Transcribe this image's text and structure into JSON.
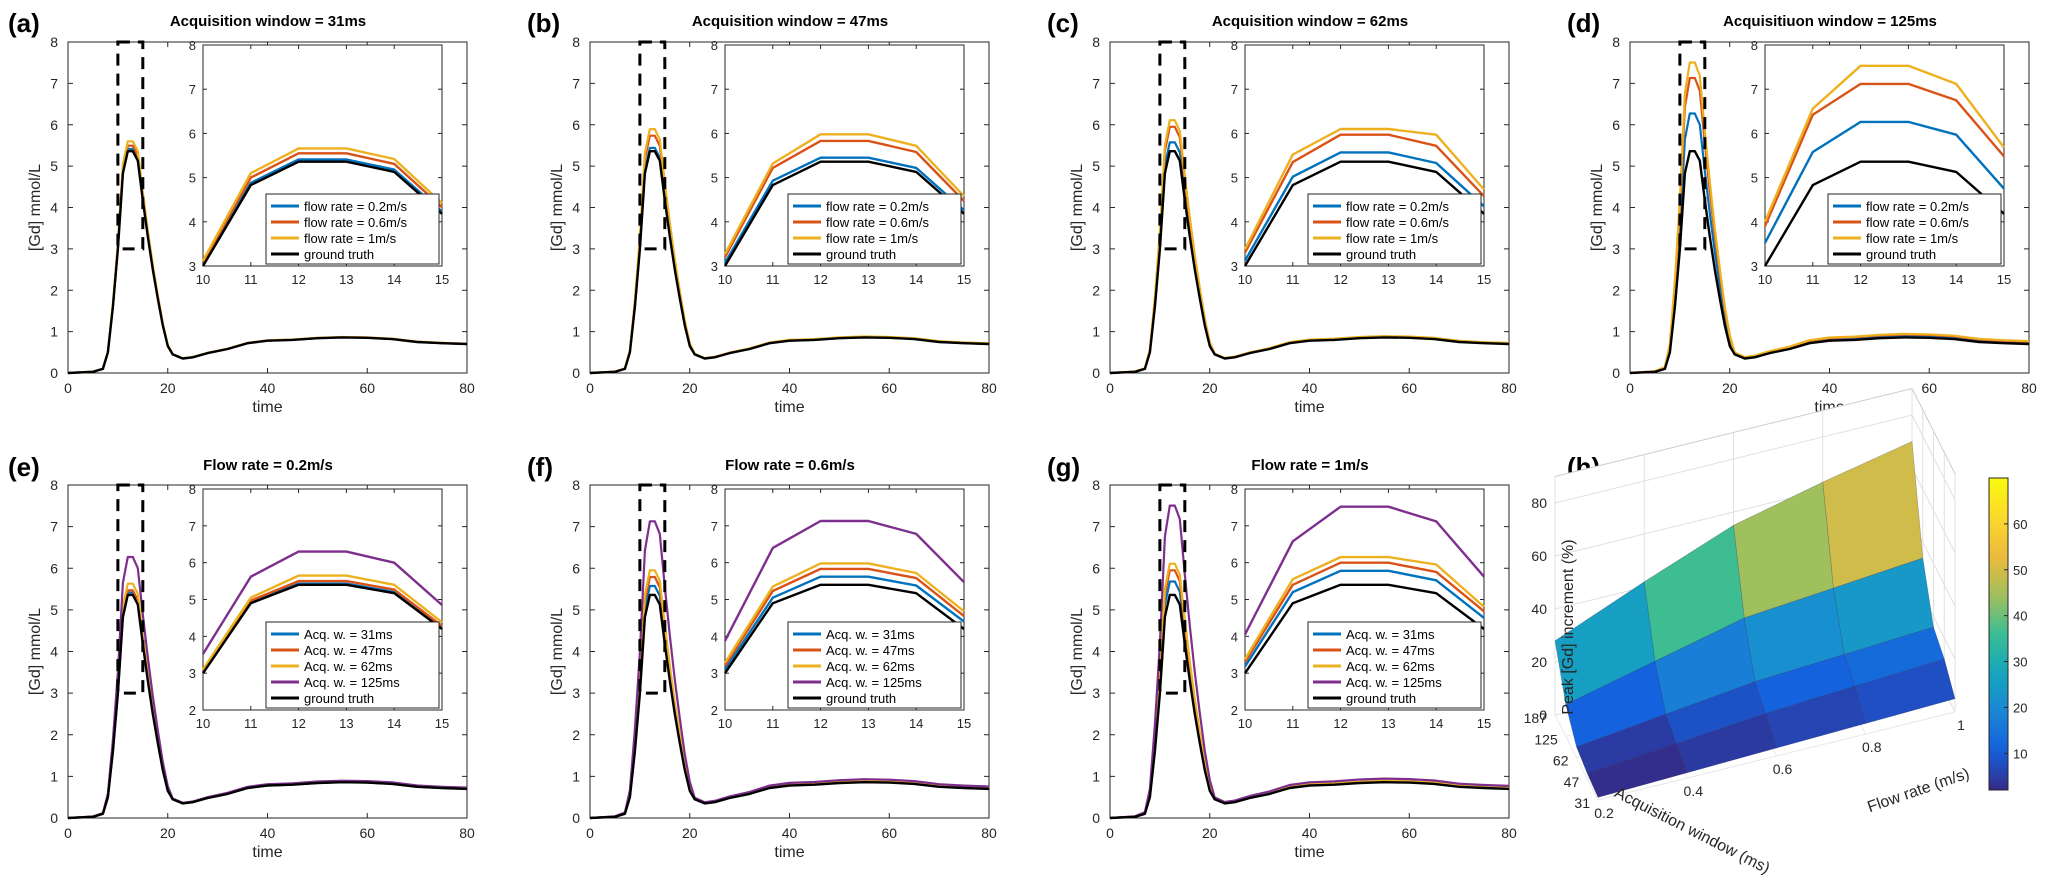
{
  "colors": {
    "blue": "#0072BD",
    "red": "#D95319",
    "yellow": "#EDB120",
    "purple": "#7E2F8E",
    "black": "#000000"
  },
  "chart_data": [
    {
      "panel": "(a)",
      "type": "line",
      "title": "Acquisition window = 31ms",
      "xlabel": "time",
      "ylabel": "[Gd] mmol/L",
      "xlim": [
        0,
        80
      ],
      "ylim": [
        0,
        8
      ],
      "xticks": [
        "0",
        "20",
        "40",
        "60",
        "80"
      ],
      "yticks": [
        "0",
        "1",
        "2",
        "3",
        "4",
        "5",
        "6",
        "7",
        "8"
      ],
      "inset": {
        "xlim": [
          10,
          15
        ],
        "ylim": [
          3,
          8
        ],
        "xticks": [
          "10",
          "11",
          "12",
          "13",
          "14",
          "15"
        ],
        "yticks": [
          "3",
          "4",
          "5",
          "6",
          "7",
          "8"
        ]
      },
      "series": [
        {
          "name": "flow rate = 0.2m/s",
          "color": "blue",
          "scale": 1.01,
          "x": [
            10,
            11,
            12,
            13,
            14,
            15
          ],
          "y": [
            3.05,
            4.88,
            5.41,
            5.41,
            5.18,
            4.23
          ]
        },
        {
          "name": "flow rate = 0.6m/s",
          "color": "red",
          "scale": 1.025,
          "x": [
            10,
            11,
            12,
            13,
            14,
            15
          ],
          "y": [
            3.08,
            5.0,
            5.55,
            5.55,
            5.31,
            4.33
          ]
        },
        {
          "name": "flow rate = 1m/s",
          "color": "yellow",
          "scale": 1.045,
          "x": [
            10,
            11,
            12,
            13,
            14,
            15
          ],
          "y": [
            3.12,
            5.1,
            5.66,
            5.66,
            5.42,
            4.42
          ]
        },
        {
          "name": "ground truth",
          "color": "black",
          "scale": 1.0,
          "x": [
            10,
            11,
            12,
            13,
            14,
            15
          ],
          "y": [
            3.0,
            4.83,
            5.36,
            5.36,
            5.13,
            4.18
          ]
        }
      ]
    },
    {
      "panel": "(b)",
      "type": "line",
      "title": "Acquisition window = 47ms",
      "xlabel": "time",
      "ylabel": "[Gd] mmol/L",
      "xlim": [
        0,
        80
      ],
      "ylim": [
        0,
        8
      ],
      "xticks": [
        "0",
        "20",
        "40",
        "60",
        "80"
      ],
      "yticks": [
        "0",
        "1",
        "2",
        "3",
        "4",
        "5",
        "6",
        "7",
        "8"
      ],
      "inset": {
        "xlim": [
          10,
          15
        ],
        "ylim": [
          3,
          8
        ],
        "xticks": [
          "10",
          "11",
          "12",
          "13",
          "14",
          "15"
        ],
        "yticks": [
          "3",
          "4",
          "5",
          "6",
          "7",
          "8"
        ]
      },
      "series": [
        {
          "name": "flow rate = 0.2m/s",
          "color": "blue",
          "scale": 1.015,
          "x": [
            10,
            11,
            12,
            13,
            14,
            15
          ],
          "y": [
            3.07,
            4.93,
            5.45,
            5.45,
            5.22,
            4.26
          ]
        },
        {
          "name": "flow rate = 0.6m/s",
          "color": "red",
          "scale": 1.07,
          "x": [
            10,
            11,
            12,
            13,
            14,
            15
          ],
          "y": [
            3.2,
            5.22,
            5.83,
            5.83,
            5.58,
            4.47
          ]
        },
        {
          "name": "flow rate = 1m/s",
          "color": "yellow",
          "scale": 1.1,
          "x": [
            10,
            11,
            12,
            13,
            14,
            15
          ],
          "y": [
            3.27,
            5.32,
            5.98,
            5.98,
            5.72,
            4.58
          ]
        },
        {
          "name": "ground truth",
          "color": "black",
          "scale": 1.0,
          "x": [
            10,
            11,
            12,
            13,
            14,
            15
          ],
          "y": [
            3.0,
            4.83,
            5.36,
            5.36,
            5.13,
            4.18
          ]
        }
      ]
    },
    {
      "panel": "(c)",
      "type": "line",
      "title": "Acquisition window = 62ms",
      "xlabel": "time",
      "ylabel": "[Gd] mmol/L",
      "xlim": [
        0,
        80
      ],
      "ylim": [
        0,
        8
      ],
      "xticks": [
        "0",
        "20",
        "40",
        "60",
        "80"
      ],
      "yticks": [
        "0",
        "1",
        "2",
        "3",
        "4",
        "5",
        "6",
        "7",
        "8"
      ],
      "inset": {
        "xlim": [
          10,
          15
        ],
        "ylim": [
          3,
          8
        ],
        "xticks": [
          "10",
          "11",
          "12",
          "13",
          "14",
          "15"
        ],
        "yticks": [
          "3",
          "4",
          "5",
          "6",
          "7",
          "8"
        ]
      },
      "series": [
        {
          "name": "flow rate = 0.2m/s",
          "color": "blue",
          "scale": 1.04,
          "x": [
            10,
            11,
            12,
            13,
            14,
            15
          ],
          "y": [
            3.12,
            5.02,
            5.57,
            5.57,
            5.33,
            4.35
          ]
        },
        {
          "name": "flow rate = 0.6m/s",
          "color": "red",
          "scale": 1.11,
          "x": [
            10,
            11,
            12,
            13,
            14,
            15
          ],
          "y": [
            3.3,
            5.35,
            5.97,
            5.97,
            5.72,
            4.58
          ]
        },
        {
          "name": "flow rate = 1m/s",
          "color": "yellow",
          "scale": 1.14,
          "x": [
            10,
            11,
            12,
            13,
            14,
            15
          ],
          "y": [
            3.38,
            5.52,
            6.1,
            6.1,
            5.97,
            4.73
          ]
        },
        {
          "name": "ground truth",
          "color": "black",
          "scale": 1.0,
          "x": [
            10,
            11,
            12,
            13,
            14,
            15
          ],
          "y": [
            3.0,
            4.83,
            5.36,
            5.36,
            5.13,
            4.18
          ]
        }
      ]
    },
    {
      "panel": "(d)",
      "type": "line",
      "title": "Acquisitiuon window = 125ms",
      "xlabel": "time",
      "ylabel": "[Gd] mmol/L",
      "xlim": [
        0,
        80
      ],
      "ylim": [
        0,
        8
      ],
      "xticks": [
        "0",
        "20",
        "40",
        "60",
        "80"
      ],
      "yticks": [
        "0",
        "1",
        "2",
        "3",
        "4",
        "5",
        "6",
        "7",
        "8"
      ],
      "inset": {
        "xlim": [
          10,
          15
        ],
        "ylim": [
          3,
          8
        ],
        "xticks": [
          "10",
          "11",
          "12",
          "13",
          "14",
          "15"
        ],
        "yticks": [
          "3",
          "4",
          "5",
          "6",
          "7",
          "8"
        ]
      },
      "series": [
        {
          "name": "flow rate = 0.2m/s",
          "color": "blue",
          "scale": 1.17,
          "x": [
            10,
            11,
            12,
            13,
            14,
            15
          ],
          "y": [
            3.52,
            5.58,
            6.26,
            6.26,
            5.97,
            4.75
          ]
        },
        {
          "name": "flow rate = 0.6m/s",
          "color": "red",
          "scale": 1.33,
          "x": [
            10,
            11,
            12,
            13,
            14,
            15
          ],
          "y": [
            3.9,
            6.42,
            7.12,
            7.12,
            6.75,
            5.48
          ]
        },
        {
          "name": "flow rate = 1m/s",
          "color": "yellow",
          "scale": 1.4,
          "x": [
            10,
            11,
            12,
            13,
            14,
            15
          ],
          "y": [
            4.0,
            6.56,
            7.53,
            7.53,
            7.12,
            5.68
          ]
        },
        {
          "name": "ground truth",
          "color": "black",
          "scale": 1.0,
          "x": [
            10,
            11,
            12,
            13,
            14,
            15
          ],
          "y": [
            3.0,
            4.83,
            5.36,
            5.36,
            5.13,
            4.18
          ]
        }
      ]
    },
    {
      "panel": "(e)",
      "type": "line",
      "title": "Flow rate = 0.2m/s",
      "xlabel": "time",
      "ylabel": "[Gd] mmol/L",
      "xlim": [
        0,
        80
      ],
      "ylim": [
        0,
        8
      ],
      "xticks": [
        "0",
        "20",
        "40",
        "60",
        "80"
      ],
      "yticks": [
        "0",
        "1",
        "2",
        "3",
        "4",
        "5",
        "6",
        "7",
        "8"
      ],
      "inset": {
        "xlim": [
          10,
          15
        ],
        "ylim": [
          2,
          8
        ],
        "xticks": [
          "10",
          "11",
          "12",
          "13",
          "14",
          "15"
        ],
        "yticks": [
          "2",
          "3",
          "4",
          "5",
          "6",
          "7",
          "8"
        ]
      },
      "series": [
        {
          "name": "Acq. w. = 31ms",
          "color": "blue",
          "scale": 1.01,
          "x": [
            10,
            11,
            12,
            13,
            14,
            15
          ],
          "y": [
            3.02,
            4.92,
            5.43,
            5.43,
            5.2,
            4.23
          ]
        },
        {
          "name": "Acq. w. = 47ms",
          "color": "red",
          "scale": 1.02,
          "x": [
            10,
            11,
            12,
            13,
            14,
            15
          ],
          "y": [
            3.05,
            4.97,
            5.5,
            5.5,
            5.27,
            4.28
          ]
        },
        {
          "name": "Acq. w. = 62ms",
          "color": "yellow",
          "scale": 1.05,
          "x": [
            10,
            11,
            12,
            13,
            14,
            15
          ],
          "y": [
            3.1,
            5.05,
            5.65,
            5.65,
            5.4,
            4.38
          ]
        },
        {
          "name": "Acq. w. = 125ms",
          "color": "purple",
          "scale": 1.17,
          "x": [
            10,
            11,
            12,
            13,
            14,
            15
          ],
          "y": [
            3.52,
            5.62,
            6.3,
            6.3,
            6.0,
            4.85
          ]
        },
        {
          "name": "ground truth",
          "color": "black",
          "scale": 1.0,
          "x": [
            10,
            11,
            12,
            13,
            14,
            15
          ],
          "y": [
            3.0,
            4.9,
            5.4,
            5.4,
            5.17,
            4.2
          ]
        }
      ]
    },
    {
      "panel": "(f)",
      "type": "line",
      "title": "Flow rate = 0.6m/s",
      "xlabel": "time",
      "ylabel": "[Gd] mmol/L",
      "xlim": [
        0,
        80
      ],
      "ylim": [
        0,
        8
      ],
      "xticks": [
        "0",
        "20",
        "40",
        "60",
        "80"
      ],
      "yticks": [
        "0",
        "1",
        "2",
        "3",
        "4",
        "5",
        "6",
        "7",
        "8"
      ],
      "inset": {
        "xlim": [
          10,
          15
        ],
        "ylim": [
          2,
          8
        ],
        "xticks": [
          "10",
          "11",
          "12",
          "13",
          "14",
          "15"
        ],
        "yticks": [
          "2",
          "3",
          "4",
          "5",
          "6",
          "7",
          "8"
        ]
      },
      "series": [
        {
          "name": "Acq. w. = 31ms",
          "color": "blue",
          "scale": 1.04,
          "x": [
            10,
            11,
            12,
            13,
            14,
            15
          ],
          "y": [
            3.1,
            5.05,
            5.62,
            5.62,
            5.38,
            4.4
          ]
        },
        {
          "name": "Acq. w. = 47ms",
          "color": "red",
          "scale": 1.08,
          "x": [
            10,
            11,
            12,
            13,
            14,
            15
          ],
          "y": [
            3.2,
            5.23,
            5.83,
            5.83,
            5.58,
            4.55
          ]
        },
        {
          "name": "Acq. w. = 62ms",
          "color": "yellow",
          "scale": 1.11,
          "x": [
            10,
            11,
            12,
            13,
            14,
            15
          ],
          "y": [
            3.28,
            5.35,
            5.98,
            5.98,
            5.72,
            4.68
          ]
        },
        {
          "name": "Acq. w. = 125ms",
          "color": "purple",
          "scale": 1.33,
          "x": [
            10,
            11,
            12,
            13,
            14,
            15
          ],
          "y": [
            3.88,
            6.4,
            7.13,
            7.13,
            6.78,
            5.47
          ]
        },
        {
          "name": "ground truth",
          "color": "black",
          "scale": 1.0,
          "x": [
            10,
            11,
            12,
            13,
            14,
            15
          ],
          "y": [
            3.0,
            4.9,
            5.4,
            5.4,
            5.17,
            4.2
          ]
        }
      ]
    },
    {
      "panel": "(g)",
      "type": "line",
      "title": "Flow rate = 1m/s",
      "xlabel": "time",
      "ylabel": "[Gd] mmol/L",
      "xlim": [
        0,
        80
      ],
      "ylim": [
        0,
        8
      ],
      "xticks": [
        "0",
        "20",
        "40",
        "60",
        "80"
      ],
      "yticks": [
        "0",
        "1",
        "2",
        "3",
        "4",
        "5",
        "6",
        "7",
        "8"
      ],
      "inset": {
        "xlim": [
          10,
          15
        ],
        "ylim": [
          2,
          8
        ],
        "xticks": [
          "10",
          "11",
          "12",
          "13",
          "14",
          "15"
        ],
        "yticks": [
          "2",
          "3",
          "4",
          "5",
          "6",
          "7",
          "8"
        ]
      },
      "series": [
        {
          "name": "Acq. w. = 31ms",
          "color": "blue",
          "scale": 1.06,
          "x": [
            10,
            11,
            12,
            13,
            14,
            15
          ],
          "y": [
            3.18,
            5.2,
            5.78,
            5.78,
            5.52,
            4.5
          ]
        },
        {
          "name": "Acq. w. = 47ms",
          "color": "red",
          "scale": 1.11,
          "x": [
            10,
            11,
            12,
            13,
            14,
            15
          ],
          "y": [
            3.3,
            5.4,
            6.0,
            6.0,
            5.75,
            4.68
          ]
        },
        {
          "name": "Acq. w. = 62ms",
          "color": "yellow",
          "scale": 1.14,
          "x": [
            10,
            11,
            12,
            13,
            14,
            15
          ],
          "y": [
            3.38,
            5.55,
            6.15,
            6.15,
            5.95,
            4.8
          ]
        },
        {
          "name": "Acq. w. = 125ms",
          "color": "purple",
          "scale": 1.4,
          "x": [
            10,
            11,
            12,
            13,
            14,
            15
          ],
          "y": [
            4.05,
            6.58,
            7.52,
            7.52,
            7.12,
            5.62
          ]
        },
        {
          "name": "ground truth",
          "color": "black",
          "scale": 1.0,
          "x": [
            10,
            11,
            12,
            13,
            14,
            15
          ],
          "y": [
            3.0,
            4.9,
            5.4,
            5.4,
            5.17,
            4.2
          ]
        }
      ]
    },
    {
      "panel": "(h)",
      "type": "heatmap",
      "zlabel": "Peak [Gd] increment (%)",
      "xlabel": "Flow rate (m/s)",
      "ylabel": "Acquisition window (ms)",
      "flow_rate_ticks": [
        "0.2",
        "0.4",
        "0.6",
        "0.8",
        "1"
      ],
      "window_ticks": [
        "31",
        "47",
        "62",
        "125",
        "187"
      ],
      "z_ticks": [
        "0",
        "20",
        "40",
        "60",
        "80"
      ],
      "colorbar_ticks": [
        "10",
        "20",
        "30",
        "40",
        "50",
        "60"
      ],
      "flow_rates": [
        0.2,
        0.4,
        0.6,
        0.8,
        1.0
      ],
      "windows": [
        31,
        47,
        62,
        125,
        187
      ],
      "z": [
        [
          1,
          2,
          3,
          4,
          5
        ],
        [
          2,
          5,
          8,
          10,
          12
        ],
        [
          4,
          8,
          12,
          14,
          16
        ],
        [
          12,
          20,
          28,
          31,
          34
        ],
        [
          28,
          42,
          55,
          63,
          70
        ]
      ]
    }
  ]
}
